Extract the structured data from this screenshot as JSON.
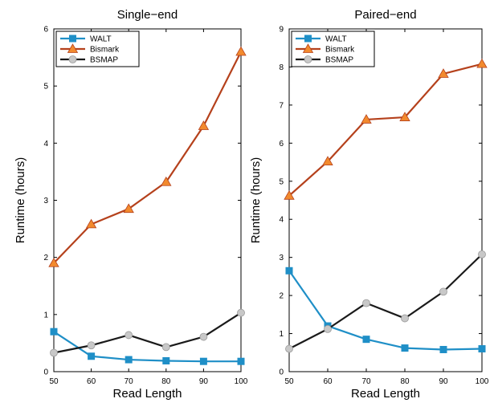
{
  "colors": {
    "WALT": "#1f8fc7",
    "Bismark": "#b5411c",
    "Bismark_marker": "#f28a2e",
    "BSMAP": "#1a1a1a",
    "BSMAP_marker": "#c8c8c8"
  },
  "chart_data": [
    {
      "type": "line",
      "title": "Single−end",
      "xlabel": "Read Length",
      "ylabel": "Runtime (hours)",
      "x": [
        50,
        60,
        70,
        80,
        90,
        100
      ],
      "xlim": [
        50,
        100
      ],
      "ylim": [
        0,
        6
      ],
      "xticks": [
        "50",
        "60",
        "70",
        "80",
        "90",
        "100"
      ],
      "yticks": [
        "0",
        "1",
        "2",
        "3",
        "4",
        "5",
        "6"
      ],
      "legend_position": "top-left",
      "series": [
        {
          "name": "WALT",
          "marker": "square",
          "values": [
            0.7,
            0.27,
            0.21,
            0.19,
            0.18,
            0.18
          ]
        },
        {
          "name": "Bismark",
          "marker": "triangle",
          "values": [
            1.9,
            2.58,
            2.85,
            3.32,
            4.3,
            5.6
          ]
        },
        {
          "name": "BSMAP",
          "marker": "circle",
          "values": [
            0.33,
            0.46,
            0.64,
            0.43,
            0.61,
            1.03
          ]
        }
      ]
    },
    {
      "type": "line",
      "title": "Paired−end",
      "xlabel": "Read Length",
      "ylabel": "Runtime (hours)",
      "x": [
        50,
        60,
        70,
        80,
        90,
        100
      ],
      "xlim": [
        50,
        100
      ],
      "ylim": [
        0,
        9
      ],
      "xticks": [
        "50",
        "60",
        "70",
        "80",
        "90",
        "100"
      ],
      "yticks": [
        "0",
        "1",
        "2",
        "3",
        "4",
        "5",
        "6",
        "7",
        "8",
        "9"
      ],
      "legend_position": "top-left",
      "series": [
        {
          "name": "WALT",
          "marker": "square",
          "values": [
            2.65,
            1.2,
            0.85,
            0.62,
            0.58,
            0.6
          ]
        },
        {
          "name": "Bismark",
          "marker": "triangle",
          "values": [
            4.62,
            5.52,
            6.62,
            6.68,
            7.82,
            8.08
          ]
        },
        {
          "name": "BSMAP",
          "marker": "circle",
          "values": [
            0.6,
            1.12,
            1.8,
            1.4,
            2.1,
            3.08
          ]
        }
      ]
    }
  ]
}
